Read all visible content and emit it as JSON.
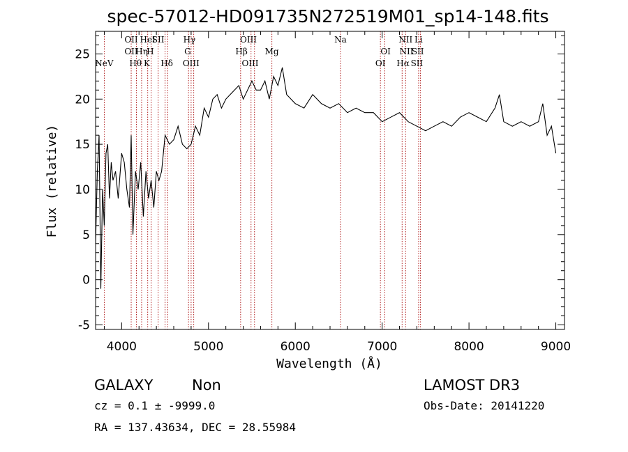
{
  "chart_data": {
    "type": "line",
    "title": "spec-57012-HD091735N272519M01_sp14-148.fits",
    "xlabel": "Wavelength (Å)",
    "ylabel": "Flux (relative)",
    "xlim": [
      3700,
      9100
    ],
    "ylim": [
      -5.5,
      27.5
    ],
    "x_ticks": [
      4000,
      5000,
      6000,
      7000,
      8000,
      9000
    ],
    "y_ticks": [
      -5,
      0,
      5,
      10,
      15,
      20,
      25
    ],
    "grid": false,
    "colors": {
      "spectrum": "#000000",
      "line_markers": "#b22222",
      "axes": "#000000"
    },
    "series": [
      {
        "x": [
          3700,
          3720,
          3740,
          3760,
          3780,
          3800,
          3820,
          3840,
          3860,
          3880,
          3900,
          3930,
          3960,
          4000,
          4030,
          4060,
          4090,
          4110,
          4130,
          4160,
          4190,
          4220,
          4250,
          4280,
          4310,
          4340,
          4370,
          4400,
          4430,
          4460,
          4500,
          4550,
          4600,
          4650,
          4700,
          4750,
          4800,
          4850,
          4900,
          4950,
          5000,
          5050,
          5100,
          5150,
          5200,
          5250,
          5300,
          5350,
          5400,
          5450,
          5500,
          5550,
          5600,
          5650,
          5700,
          5750,
          5800,
          5850,
          5900,
          5950,
          6000,
          6100,
          6200,
          6300,
          6400,
          6500,
          6600,
          6700,
          6800,
          6900,
          7000,
          7100,
          7200,
          7300,
          7400,
          7500,
          7600,
          7700,
          7800,
          7900,
          8000,
          8100,
          8200,
          8300,
          8350,
          8400,
          8500,
          8600,
          8700,
          8800,
          8850,
          8900,
          8950,
          9000
        ],
        "y": [
          4,
          12,
          16,
          -1,
          10,
          6,
          14,
          15,
          9,
          13,
          11,
          12,
          9,
          14,
          13,
          10,
          8,
          16,
          5,
          12,
          10,
          13,
          7,
          12,
          9,
          11,
          8,
          12,
          11,
          12,
          16,
          15,
          15.5,
          17,
          15,
          14.5,
          15,
          17,
          16,
          19,
          18,
          20,
          20.5,
          19,
          20,
          20.5,
          21,
          21.5,
          20,
          21,
          22,
          21,
          21,
          22,
          20,
          22.5,
          21.5,
          23.5,
          20.5,
          20,
          19.5,
          19,
          20.5,
          19.5,
          19,
          19.5,
          18.5,
          19,
          18.5,
          18.5,
          17.5,
          18,
          18.5,
          17.5,
          17,
          16.5,
          17,
          17.5,
          17,
          18,
          18.5,
          18,
          17.5,
          19,
          20.5,
          17.5,
          17,
          17.5,
          17,
          17.5,
          19.5,
          16,
          17,
          14
        ]
      }
    ],
    "line_markers": [
      {
        "label": "NeV",
        "x": 3800,
        "row": 3
      },
      {
        "label": "OII",
        "x": 4110,
        "row": 0
      },
      {
        "label": "OII",
        "x": 4110,
        "row": 1
      },
      {
        "label": "Hθ",
        "x": 4160,
        "row": 2
      },
      {
        "label": "Hη",
        "x": 4230,
        "row": 1
      },
      {
        "label": "HeI",
        "x": 4300,
        "row": 0
      },
      {
        "label": "H",
        "x": 4330,
        "row": 1
      },
      {
        "label": "K",
        "x": 4290,
        "row": 2
      },
      {
        "label": "SII",
        "x": 4420,
        "row": 0
      },
      {
        "label": "Hδ",
        "x": 4520,
        "row": 2
      },
      {
        "label": "Hγ",
        "x": 4780,
        "row": 0
      },
      {
        "label": "G",
        "x": 4760,
        "row": 1
      },
      {
        "label": "OIII",
        "x": 4800,
        "row": 2
      },
      {
        "label": "Hβ",
        "x": 5380,
        "row": 1
      },
      {
        "label": "OIII",
        "x": 5460,
        "row": 0
      },
      {
        "label": "OIII",
        "x": 5480,
        "row": 2
      },
      {
        "label": "Mg",
        "x": 5730,
        "row": 1
      },
      {
        "label": "Na",
        "x": 6520,
        "row": 0
      },
      {
        "label": "OI",
        "x": 7040,
        "row": 1
      },
      {
        "label": "OI",
        "x": 6980,
        "row": 2
      },
      {
        "label": "NII",
        "x": 7270,
        "row": 0
      },
      {
        "label": "NII",
        "x": 7280,
        "row": 1
      },
      {
        "label": "Hα",
        "x": 7240,
        "row": 2
      },
      {
        "label": "Li",
        "x": 7420,
        "row": 0
      },
      {
        "label": "SII",
        "x": 7410,
        "row": 1
      },
      {
        "label": "SII",
        "x": 7400,
        "row": 2
      }
    ],
    "marker_lines_x": [
      3800,
      4110,
      4170,
      4230,
      4300,
      4340,
      4420,
      4500,
      4530,
      4770,
      4800,
      4830,
      5370,
      5490,
      5530,
      5730,
      6520,
      6980,
      7030,
      7230,
      7270,
      7420,
      7440
    ]
  },
  "info": {
    "object_class": "GALAXY",
    "subclass": "Non",
    "survey": "LAMOST DR3",
    "cz_line": "cz = 0.1 ± -9999.0",
    "obs_date_line": "Obs-Date: 20141220",
    "coord_line": "RA = 137.43634, DEC =  28.55984"
  }
}
